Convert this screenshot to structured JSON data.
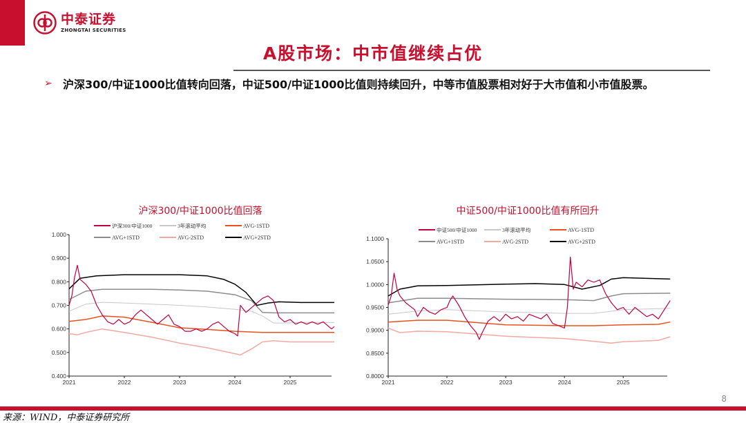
{
  "header": {
    "brand_cn": "中泰证券",
    "brand_en": "ZHONGTAI SECURITIES",
    "accent_color": "#c8102e",
    "logo_icon": "zhongtai-logo-icon"
  },
  "title": "A股市场：中市值继续占优",
  "bullet_symbol": "➢",
  "bullet_text": "沪深300/中证1000比值转向回落，中证500/中证1000比值则持续回升，中等市值股票相对好于大市值和小市值股票。",
  "chart_data": [
    {
      "type": "line",
      "title": "沪深300/中证1000比值回落",
      "x_ticks": [
        "2021",
        "2022",
        "2023",
        "2024",
        "2025"
      ],
      "xlim": [
        "2021-01",
        "2025-10"
      ],
      "ylim": [
        0.4,
        1.0
      ],
      "y_ticks": [
        "1.000",
        "0.900",
        "0.800",
        "0.700",
        "0.600",
        "0.500",
        "0.400"
      ],
      "grid": false,
      "legend_position": "top",
      "series": [
        {
          "name": "沪深300/中证1000",
          "color": "#c0003c",
          "width": 1.2,
          "values": [
            [
              2021.0,
              0.7
            ],
            [
              2021.05,
              0.74
            ],
            [
              2021.1,
              0.82
            ],
            [
              2021.15,
              0.87
            ],
            [
              2021.2,
              0.81
            ],
            [
              2021.3,
              0.79
            ],
            [
              2021.4,
              0.76
            ],
            [
              2021.5,
              0.7
            ],
            [
              2021.6,
              0.66
            ],
            [
              2021.7,
              0.63
            ],
            [
              2021.8,
              0.62
            ],
            [
              2021.9,
              0.64
            ],
            [
              2022.0,
              0.62
            ],
            [
              2022.1,
              0.63
            ],
            [
              2022.2,
              0.66
            ],
            [
              2022.3,
              0.68
            ],
            [
              2022.4,
              0.66
            ],
            [
              2022.5,
              0.64
            ],
            [
              2022.6,
              0.62
            ],
            [
              2022.7,
              0.64
            ],
            [
              2022.8,
              0.66
            ],
            [
              2022.9,
              0.62
            ],
            [
              2023.0,
              0.61
            ],
            [
              2023.1,
              0.59
            ],
            [
              2023.2,
              0.59
            ],
            [
              2023.3,
              0.6
            ],
            [
              2023.4,
              0.59
            ],
            [
              2023.5,
              0.6
            ],
            [
              2023.6,
              0.62
            ],
            [
              2023.7,
              0.63
            ],
            [
              2023.8,
              0.61
            ],
            [
              2023.9,
              0.59
            ],
            [
              2024.0,
              0.58
            ],
            [
              2024.05,
              0.57
            ],
            [
              2024.1,
              0.7
            ],
            [
              2024.2,
              0.67
            ],
            [
              2024.3,
              0.69
            ],
            [
              2024.4,
              0.71
            ],
            [
              2024.5,
              0.73
            ],
            [
              2024.6,
              0.74
            ],
            [
              2024.7,
              0.72
            ],
            [
              2024.8,
              0.65
            ],
            [
              2024.9,
              0.63
            ],
            [
              2025.0,
              0.64
            ],
            [
              2025.1,
              0.62
            ],
            [
              2025.2,
              0.63
            ],
            [
              2025.3,
              0.62
            ],
            [
              2025.4,
              0.63
            ],
            [
              2025.5,
              0.62
            ],
            [
              2025.6,
              0.63
            ],
            [
              2025.7,
              0.61
            ],
            [
              2025.75,
              0.6
            ],
            [
              2025.8,
              0.61
            ]
          ]
        },
        {
          "name": "3年滚动平均",
          "color": "#c8c8c8",
          "width": 1,
          "values": [
            [
              2021.0,
              0.675
            ],
            [
              2021.3,
              0.705
            ],
            [
              2021.6,
              0.713
            ],
            [
              2022.0,
              0.71
            ],
            [
              2022.5,
              0.705
            ],
            [
              2023.0,
              0.7
            ],
            [
              2023.5,
              0.693
            ],
            [
              2024.0,
              0.683
            ],
            [
              2024.3,
              0.675
            ],
            [
              2024.5,
              0.655
            ],
            [
              2024.7,
              0.625
            ],
            [
              2024.9,
              0.625
            ],
            [
              2025.3,
              0.628
            ],
            [
              2025.8,
              0.627
            ]
          ]
        },
        {
          "name": "AVG-1STD",
          "color": "#e8501e",
          "width": 1.5,
          "values": [
            [
              2021.0,
              0.632
            ],
            [
              2021.3,
              0.64
            ],
            [
              2021.6,
              0.655
            ],
            [
              2022.0,
              0.65
            ],
            [
              2022.5,
              0.628
            ],
            [
              2023.0,
              0.605
            ],
            [
              2023.5,
              0.598
            ],
            [
              2024.0,
              0.59
            ],
            [
              2024.5,
              0.585
            ],
            [
              2025.0,
              0.585
            ],
            [
              2025.8,
              0.585
            ]
          ]
        },
        {
          "name": "AVG+1STD",
          "color": "#8c8c8c",
          "width": 1.5,
          "values": [
            [
              2021.0,
              0.725
            ],
            [
              2021.3,
              0.76
            ],
            [
              2021.6,
              0.768
            ],
            [
              2022.0,
              0.768
            ],
            [
              2022.5,
              0.768
            ],
            [
              2023.0,
              0.765
            ],
            [
              2023.5,
              0.76
            ],
            [
              2024.0,
              0.745
            ],
            [
              2024.3,
              0.72
            ],
            [
              2024.5,
              0.67
            ],
            [
              2024.7,
              0.668
            ],
            [
              2025.0,
              0.668
            ],
            [
              2025.8,
              0.668
            ]
          ]
        },
        {
          "name": "AVG-2STD",
          "color": "#f4a8a0",
          "width": 1.5,
          "values": [
            [
              2021.0,
              0.58
            ],
            [
              2021.15,
              0.575
            ],
            [
              2021.3,
              0.585
            ],
            [
              2021.6,
              0.6
            ],
            [
              2022.0,
              0.585
            ],
            [
              2022.5,
              0.565
            ],
            [
              2023.0,
              0.54
            ],
            [
              2023.5,
              0.52
            ],
            [
              2024.0,
              0.495
            ],
            [
              2024.1,
              0.49
            ],
            [
              2024.3,
              0.515
            ],
            [
              2024.5,
              0.545
            ],
            [
              2024.7,
              0.55
            ],
            [
              2025.0,
              0.545
            ],
            [
              2025.8,
              0.545
            ]
          ]
        },
        {
          "name": "AVG+2STD",
          "color": "#000000",
          "width": 1.5,
          "values": [
            [
              2021.0,
              0.77
            ],
            [
              2021.2,
              0.815
            ],
            [
              2021.5,
              0.825
            ],
            [
              2022.0,
              0.83
            ],
            [
              2022.5,
              0.83
            ],
            [
              2023.0,
              0.83
            ],
            [
              2023.5,
              0.825
            ],
            [
              2023.8,
              0.81
            ],
            [
              2024.0,
              0.79
            ],
            [
              2024.2,
              0.755
            ],
            [
              2024.4,
              0.7
            ],
            [
              2024.6,
              0.71
            ],
            [
              2024.8,
              0.715
            ],
            [
              2025.2,
              0.712
            ],
            [
              2025.8,
              0.712
            ]
          ]
        }
      ]
    },
    {
      "type": "line",
      "title": "中证500/中证1000比值有所回升",
      "x_ticks": [
        "2021",
        "2022",
        "2023",
        "2024",
        "2025"
      ],
      "xlim": [
        "2021-01",
        "2025-10"
      ],
      "ylim": [
        0.8,
        1.1
      ],
      "y_ticks": [
        "1.1000",
        "1.0500",
        "1.0000",
        "0.9500",
        "0.9000",
        "0.8500",
        "0.8000"
      ],
      "grid": false,
      "legend_position": "top",
      "series": [
        {
          "name": "中证500/中证1000",
          "color": "#c0003c",
          "width": 1.2,
          "values": [
            [
              2021.0,
              0.955
            ],
            [
              2021.05,
              0.975
            ],
            [
              2021.1,
              1.025
            ],
            [
              2021.15,
              0.99
            ],
            [
              2021.2,
              0.975
            ],
            [
              2021.3,
              0.96
            ],
            [
              2021.45,
              0.945
            ],
            [
              2021.5,
              0.93
            ],
            [
              2021.6,
              0.95
            ],
            [
              2021.7,
              0.94
            ],
            [
              2021.8,
              0.935
            ],
            [
              2021.9,
              0.945
            ],
            [
              2022.0,
              0.95
            ],
            [
              2022.05,
              0.965
            ],
            [
              2022.1,
              0.975
            ],
            [
              2022.2,
              0.955
            ],
            [
              2022.3,
              0.93
            ],
            [
              2022.4,
              0.91
            ],
            [
              2022.5,
              0.895
            ],
            [
              2022.55,
              0.88
            ],
            [
              2022.6,
              0.895
            ],
            [
              2022.7,
              0.92
            ],
            [
              2022.8,
              0.93
            ],
            [
              2022.9,
              0.92
            ],
            [
              2023.0,
              0.935
            ],
            [
              2023.1,
              0.925
            ],
            [
              2023.2,
              0.93
            ],
            [
              2023.3,
              0.92
            ],
            [
              2023.4,
              0.935
            ],
            [
              2023.5,
              0.93
            ],
            [
              2023.6,
              0.925
            ],
            [
              2023.7,
              0.935
            ],
            [
              2023.8,
              0.915
            ],
            [
              2023.9,
              0.91
            ],
            [
              2024.0,
              0.905
            ],
            [
              2024.05,
              0.95
            ],
            [
              2024.1,
              1.06
            ],
            [
              2024.15,
              0.99
            ],
            [
              2024.2,
              1.005
            ],
            [
              2024.3,
              0.995
            ],
            [
              2024.4,
              1.01
            ],
            [
              2024.5,
              1.005
            ],
            [
              2024.6,
              1.01
            ],
            [
              2024.7,
              0.98
            ],
            [
              2024.8,
              0.96
            ],
            [
              2024.9,
              0.945
            ],
            [
              2025.0,
              0.95
            ],
            [
              2025.1,
              0.935
            ],
            [
              2025.2,
              0.95
            ],
            [
              2025.3,
              0.94
            ],
            [
              2025.4,
              0.93
            ],
            [
              2025.5,
              0.935
            ],
            [
              2025.6,
              0.925
            ],
            [
              2025.7,
              0.945
            ],
            [
              2025.8,
              0.965
            ]
          ]
        },
        {
          "name": "3年滚动平均",
          "color": "#c8c8c8",
          "width": 1,
          "values": [
            [
              2021.0,
              0.935
            ],
            [
              2021.5,
              0.942
            ],
            [
              2022.0,
              0.945
            ],
            [
              2023.0,
              0.94
            ],
            [
              2024.0,
              0.937
            ],
            [
              2024.5,
              0.937
            ],
            [
              2025.0,
              0.945
            ],
            [
              2025.8,
              0.948
            ]
          ]
        },
        {
          "name": "AVG-1STD",
          "color": "#e8501e",
          "width": 1.5,
          "values": [
            [
              2021.0,
              0.918
            ],
            [
              2021.5,
              0.922
            ],
            [
              2022.0,
              0.922
            ],
            [
              2023.0,
              0.912
            ],
            [
              2024.0,
              0.91
            ],
            [
              2024.5,
              0.91
            ],
            [
              2025.0,
              0.912
            ],
            [
              2025.6,
              0.913
            ],
            [
              2025.8,
              0.918
            ]
          ]
        },
        {
          "name": "AVG+1STD",
          "color": "#8c8c8c",
          "width": 1.5,
          "values": [
            [
              2021.0,
              0.96
            ],
            [
              2021.5,
              0.97
            ],
            [
              2022.0,
              0.97
            ],
            [
              2023.0,
              0.968
            ],
            [
              2024.0,
              0.967
            ],
            [
              2024.5,
              0.965
            ],
            [
              2024.8,
              0.975
            ],
            [
              2025.0,
              0.98
            ],
            [
              2025.8,
              0.981
            ]
          ]
        },
        {
          "name": "AVG-2STD",
          "color": "#f4a8a0",
          "width": 1.5,
          "values": [
            [
              2021.0,
              0.905
            ],
            [
              2021.2,
              0.895
            ],
            [
              2021.5,
              0.898
            ],
            [
              2022.0,
              0.897
            ],
            [
              2023.0,
              0.887
            ],
            [
              2024.0,
              0.882
            ],
            [
              2024.5,
              0.876
            ],
            [
              2024.8,
              0.872
            ],
            [
              2025.0,
              0.875
            ],
            [
              2025.6,
              0.878
            ],
            [
              2025.8,
              0.886
            ]
          ]
        },
        {
          "name": "AVG+2STD",
          "color": "#000000",
          "width": 1.5,
          "values": [
            [
              2021.0,
              0.975
            ],
            [
              2021.2,
              0.99
            ],
            [
              2021.5,
              0.997
            ],
            [
              2022.0,
              0.998
            ],
            [
              2023.0,
              1.001
            ],
            [
              2023.5,
              1.002
            ],
            [
              2024.0,
              1.0
            ],
            [
              2024.3,
              0.99
            ],
            [
              2024.6,
              0.998
            ],
            [
              2024.8,
              1.012
            ],
            [
              2025.0,
              1.015
            ],
            [
              2025.8,
              1.012
            ]
          ]
        }
      ]
    }
  ],
  "page_number": "8",
  "footer": "来源：WIND，中泰证券研究所"
}
